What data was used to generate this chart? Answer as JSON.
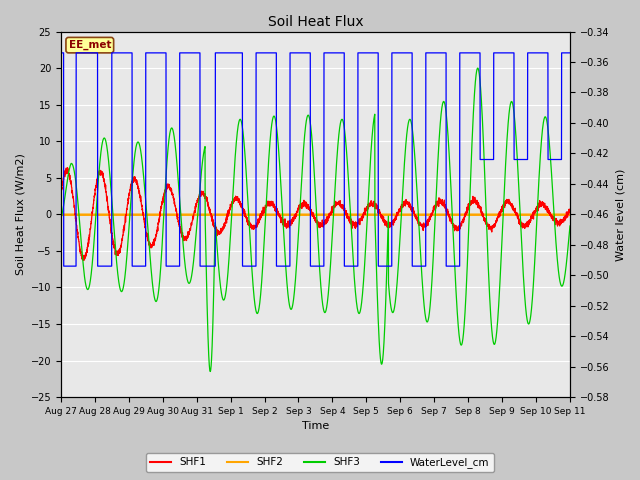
{
  "title": "Soil Heat Flux",
  "ylabel_left": "Soil Heat Flux (W/m2)",
  "ylabel_right": "Water level (cm)",
  "xlabel": "Time",
  "ylim_left": [
    -25,
    25
  ],
  "ylim_right": [
    -0.58,
    -0.34
  ],
  "fig_bg": "#c8c8c8",
  "plot_bg": "#e8e8e8",
  "annotation_text": "EE_met",
  "annotation_box_color": "#ffff99",
  "annotation_border_color": "#8B4513",
  "x_tick_labels": [
    "Aug 27",
    "Aug 28",
    "Aug 29",
    "Aug 30",
    "Aug 31",
    "Sep 1",
    "Sep 2",
    "Sep 3",
    "Sep 4",
    "Sep 5",
    "Sep 6",
    "Sep 7",
    "Sep 8",
    "Sep 9",
    "Sep 10",
    "Sep 11"
  ],
  "shf1_color": "#ff0000",
  "shf2_color": "#ffa500",
  "shf3_color": "#00cc00",
  "water_color": "#0000ff",
  "legend_labels": [
    "SHF1",
    "SHF2",
    "SHF3",
    "WaterLevel_cm"
  ],
  "water_high": -0.354,
  "water_low": -0.494,
  "water_mid": -0.424,
  "shf1_phase": 0.5,
  "shf3_phase": -0.2
}
